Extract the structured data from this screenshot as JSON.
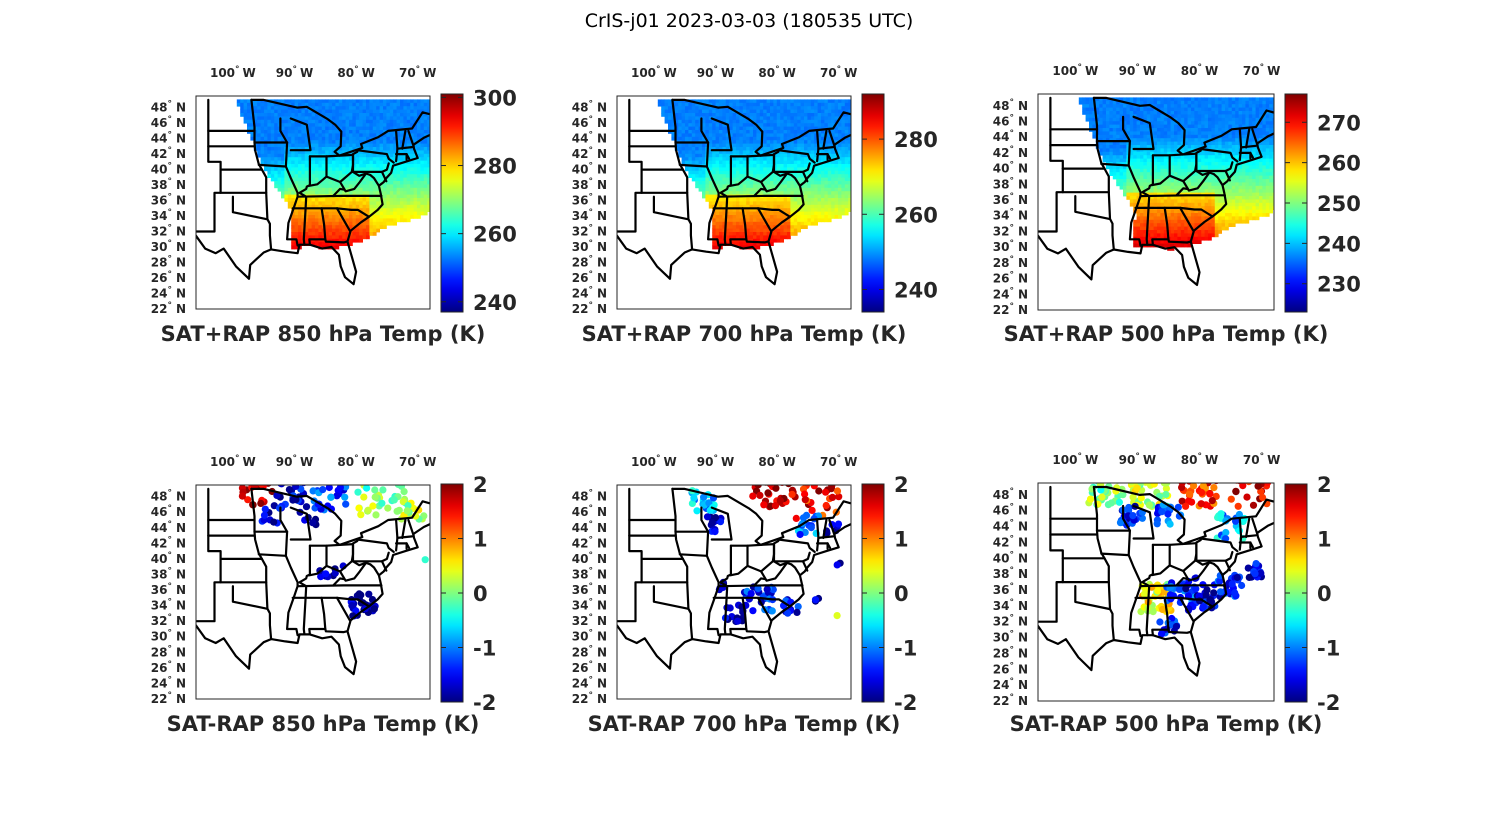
{
  "figure": {
    "title": "CrIS-j01 2023-03-03 (180535 UTC)"
  },
  "map_axes": {
    "lon_ticks": [
      {
        "value": -100,
        "label": "100",
        "hem": "W"
      },
      {
        "value": -90,
        "label": "90",
        "hem": "W"
      },
      {
        "value": -80,
        "label": "80",
        "hem": "W"
      },
      {
        "value": -70,
        "label": "70",
        "hem": "W"
      }
    ],
    "lat_ticks": [
      {
        "value": 48,
        "label": "48",
        "hem": "N"
      },
      {
        "value": 46,
        "label": "46",
        "hem": "N"
      },
      {
        "value": 44,
        "label": "44",
        "hem": "N"
      },
      {
        "value": 42,
        "label": "42",
        "hem": "N"
      },
      {
        "value": 40,
        "label": "40",
        "hem": "N"
      },
      {
        "value": 38,
        "label": "38",
        "hem": "N"
      },
      {
        "value": 36,
        "label": "36",
        "hem": "N"
      },
      {
        "value": 34,
        "label": "34",
        "hem": "N"
      },
      {
        "value": 32,
        "label": "32",
        "hem": "N"
      },
      {
        "value": 30,
        "label": "30",
        "hem": "N"
      },
      {
        "value": 28,
        "label": "28",
        "hem": "N"
      },
      {
        "value": 26,
        "label": "26",
        "hem": "N"
      },
      {
        "value": 24,
        "label": "24",
        "hem": "N"
      },
      {
        "value": 22,
        "label": "22",
        "hem": "N"
      }
    ],
    "degree_symbol": "°",
    "lon_range": [
      -106,
      -68
    ],
    "lat_range": [
      22,
      49.5
    ]
  },
  "colormap": "jet",
  "panels": [
    {
      "id": "sat-rap-850",
      "title": "SAT+RAP 850 hPa Temp (K)",
      "kind": "sum",
      "clim": [
        237,
        301
      ],
      "ticks": [
        "300",
        "280",
        "260",
        "240"
      ],
      "tick_values": [
        300,
        280,
        260,
        240
      ]
    },
    {
      "id": "sat-rap-700",
      "title": "SAT+RAP 700 hPa Temp (K)",
      "kind": "sum",
      "clim": [
        234,
        292
      ],
      "ticks": [
        "280",
        "260",
        "240"
      ],
      "tick_values": [
        280,
        260,
        240
      ]
    },
    {
      "id": "sat-rap-500",
      "title": "SAT+RAP 500 hPa Temp (K)",
      "kind": "sum",
      "clim": [
        223,
        277
      ],
      "ticks": [
        "270",
        "260",
        "250",
        "240",
        "230"
      ],
      "tick_values": [
        270,
        260,
        250,
        240,
        230
      ]
    },
    {
      "id": "sat-minus-rap-850",
      "title": "SAT-RAP 850 hPa Temp (K)",
      "kind": "diff",
      "clim": [
        -2,
        2
      ],
      "ticks": [
        "2",
        "1",
        "0",
        "-1",
        "-2"
      ],
      "tick_values": [
        2,
        1,
        0,
        -1,
        -2
      ]
    },
    {
      "id": "sat-minus-rap-700",
      "title": "SAT-RAP 700 hPa Temp (K)",
      "kind": "diff",
      "clim": [
        -2,
        2
      ],
      "ticks": [
        "2",
        "1",
        "0",
        "-1",
        "-2"
      ],
      "tick_values": [
        2,
        1,
        0,
        -1,
        -2
      ]
    },
    {
      "id": "sat-minus-rap-500",
      "title": "SAT-RAP 500 hPa Temp (K)",
      "kind": "diff",
      "clim": [
        -2,
        2
      ],
      "ticks": [
        "2",
        "1",
        "0",
        "-1",
        "-2"
      ],
      "tick_values": [
        2,
        1,
        0,
        -1,
        -2
      ]
    }
  ]
}
